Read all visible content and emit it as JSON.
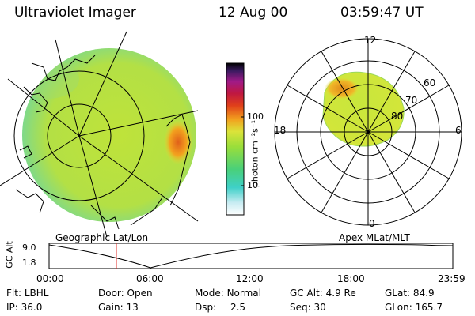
{
  "header": {
    "instrument": "Ultraviolet Imager",
    "date": "12 Aug 00",
    "time": "03:59:47 UT"
  },
  "colorbar": {
    "unit_label": "photon cm⁻²s⁻¹",
    "ticks": [
      "100",
      "10"
    ],
    "scale": "log"
  },
  "geo_panel": {
    "caption": "Geographic Lat/Lon"
  },
  "polar_panel": {
    "caption": "Apex MLat/MLT",
    "mlt_labels": {
      "top": "12",
      "left": "18",
      "right": "6",
      "bottom": "0"
    },
    "lat_labels": [
      "60",
      "70",
      "80"
    ]
  },
  "timeline": {
    "ylabel": "GC Alt",
    "y_ticks": [
      "9.0",
      "1.8"
    ],
    "x_ticks": [
      "00:00",
      "06:00",
      "12:00",
      "18:00",
      "23:59"
    ],
    "current_time_fraction": 0.1666
  },
  "status": {
    "row1": [
      {
        "key": "Flt:",
        "value": "LBHL"
      },
      {
        "key": "Door:",
        "value": "Open"
      },
      {
        "key": "Mode:",
        "value": "Normal"
      },
      {
        "key": "GC Alt:",
        "value": "4.9 Re"
      },
      {
        "key": "GLat:",
        "value": "84.9"
      }
    ],
    "row2": [
      {
        "key": "IP:",
        "value": "36.0"
      },
      {
        "key": "Gain:",
        "value": "13"
      },
      {
        "key": "Dsp:",
        "value": "2.5"
      },
      {
        "key": "Seq:",
        "value": "30"
      },
      {
        "key": "GLon:",
        "value": "165.7"
      }
    ]
  },
  "colors": {
    "disk_fill": "#c8e63c",
    "aurora_hot": "#f08a1e",
    "background": "#ffffff"
  }
}
